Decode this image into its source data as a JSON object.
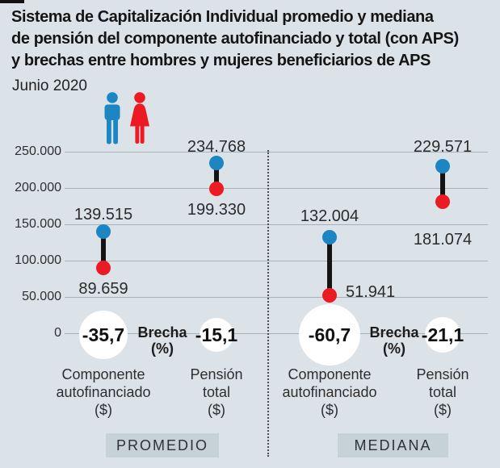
{
  "header": {
    "title_lines": [
      "Sistema de Capitalización Individual promedio y mediana",
      "de pensión del componente autofinanciado y total (con APS)",
      "y brechas entre hombres y mujeres beneficiarios de APS"
    ],
    "subtitle": "Junio 2020"
  },
  "colors": {
    "men": "#1b86c1",
    "women": "#ec1b23",
    "background": "#dce3e8",
    "grid": "#a5b2ba",
    "connector": "#141414",
    "gap_circle": "#ffffff",
    "group_box": "#c6d2d8"
  },
  "chart_data": {
    "type": "dumbbell",
    "unit": "$",
    "y_axis": {
      "range": [
        0,
        250000
      ],
      "ticks": [
        {
          "value": 0,
          "label": "0"
        },
        {
          "value": 50000,
          "label": "50.000"
        },
        {
          "value": 100000,
          "label": "100.000"
        },
        {
          "value": 150000,
          "label": "150.000"
        },
        {
          "value": 200000,
          "label": "200.000"
        },
        {
          "value": 250000,
          "label": "250.000"
        }
      ]
    },
    "legend": [
      {
        "icon": "man-icon",
        "series": "men"
      },
      {
        "icon": "woman-icon",
        "series": "women"
      }
    ],
    "gap_caption_lines": [
      "Brecha",
      "(%)"
    ],
    "groups": [
      {
        "label": "PROMEDIO",
        "columns": [
          {
            "label_lines": [
              "Componente",
              "autofinanciado",
              "($)"
            ],
            "men_value": 139515,
            "men_label": "139.515",
            "women_value": 89659,
            "women_label": "89.659",
            "gap_pct_label": "-35,7"
          },
          {
            "label_lines": [
              "Pensión",
              "total",
              "($)"
            ],
            "men_value": 234768,
            "men_label": "234.768",
            "women_value": 199330,
            "women_label": "199.330",
            "gap_pct_label": "-15,1"
          }
        ]
      },
      {
        "label": "MEDIANA",
        "columns": [
          {
            "label_lines": [
              "Componente",
              "autofinanciado",
              "($)"
            ],
            "men_value": 132004,
            "men_label": "132.004",
            "women_value": 51941,
            "women_label": "51.941",
            "gap_pct_label": "-60,7"
          },
          {
            "label_lines": [
              "Pensión",
              "total",
              "($)"
            ],
            "men_value": 229571,
            "men_label": "229.571",
            "women_value": 181074,
            "women_label": "181.074",
            "gap_pct_label": "-21,1"
          }
        ]
      }
    ]
  }
}
